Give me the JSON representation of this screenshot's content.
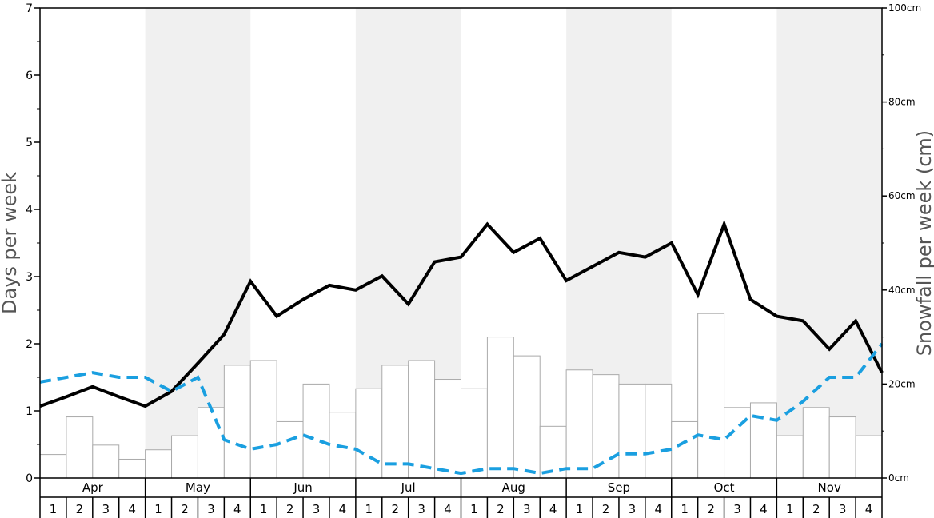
{
  "chart_data": {
    "type": "bar+line",
    "ylabel_left": "Days per week",
    "ylabel_right": "Snowfall per week (cm)",
    "ylim_left": [
      0,
      7
    ],
    "ylim_right": [
      0,
      100
    ],
    "yticks_left": [
      "0",
      "1",
      "2",
      "3",
      "4",
      "5",
      "6",
      "7"
    ],
    "yticks_right": [
      "0cm",
      "20cm",
      "40cm",
      "60cm",
      "80cm",
      "100cm"
    ],
    "months": [
      "Apr",
      "May",
      "Jun",
      "Jul",
      "Aug",
      "Sep",
      "Oct",
      "Nov"
    ],
    "week_labels": [
      "1",
      "2",
      "3",
      "4"
    ],
    "shaded_months": [
      "May",
      "Jul",
      "Sep",
      "Nov"
    ],
    "series": [
      {
        "kind": "bar",
        "axis": "right",
        "color": "#ffffff",
        "stroke": "#aaaaaa",
        "values": [
          5,
          13,
          7,
          4,
          6,
          9,
          15,
          24,
          25,
          12,
          20,
          14,
          19,
          24,
          25,
          21,
          19,
          30,
          26,
          11,
          23,
          22,
          20,
          20,
          12,
          35,
          15,
          16,
          9,
          15,
          13,
          9
        ]
      },
      {
        "kind": "line",
        "axis": "left",
        "color": "#000000",
        "style": "solid",
        "values": [
          1.07,
          1.21,
          1.36,
          1.21,
          1.07,
          1.29,
          1.71,
          2.14,
          2.93,
          2.41,
          2.66,
          2.87,
          2.8,
          3.01,
          2.59,
          3.22,
          3.29,
          3.78,
          3.36,
          3.57,
          2.94,
          3.15,
          3.36,
          3.29,
          3.5,
          2.73,
          3.78,
          2.66,
          2.41,
          2.34,
          1.92,
          2.34,
          1.57
        ]
      },
      {
        "kind": "line",
        "axis": "left",
        "color": "#1a9fe0",
        "style": "dashed",
        "values": [
          1.43,
          1.5,
          1.57,
          1.5,
          1.5,
          1.29,
          1.5,
          0.57,
          0.43,
          0.5,
          0.64,
          0.5,
          0.43,
          0.21,
          0.21,
          0.14,
          0.07,
          0.14,
          0.14,
          0.07,
          0.14,
          0.14,
          0.36,
          0.36,
          0.43,
          0.64,
          0.57,
          0.93,
          0.86,
          1.14,
          1.5,
          1.5,
          2.0
        ]
      }
    ]
  }
}
